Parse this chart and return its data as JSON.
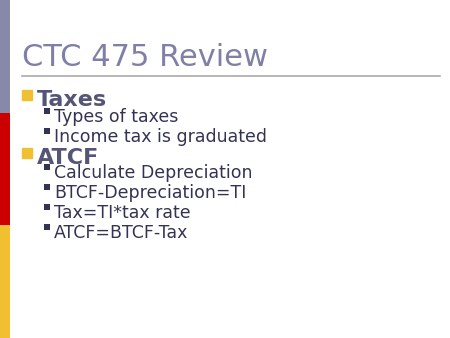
{
  "title": "CTC 475 Review",
  "title_color": "#7F7FA8",
  "title_fontsize": 22,
  "background_color": "#FFFFFF",
  "sidebar_colors": [
    "#F0C030",
    "#CC0000",
    "#8888AA"
  ],
  "h_line_color": "#AAAAAA",
  "bullet1_header": "Taxes",
  "bullet1_header_color": "#555577",
  "bullet1_box_color": "#F0C030",
  "bullet1_items": [
    "Types of taxes",
    "Income tax is graduated"
  ],
  "bullet2_header": "ATCF",
  "bullet2_header_color": "#555577",
  "bullet2_box_color": "#F0C030",
  "bullet2_items": [
    "Calculate Depreciation",
    "BTCF-Depreciation=TI",
    "Tax=TI*tax rate",
    "ATCF=BTCF-Tax"
  ],
  "sub_bullet_color": "#333355",
  "sub_bullet_marker_color": "#333355",
  "header_fontsize": 16,
  "sub_fontsize": 12.5
}
